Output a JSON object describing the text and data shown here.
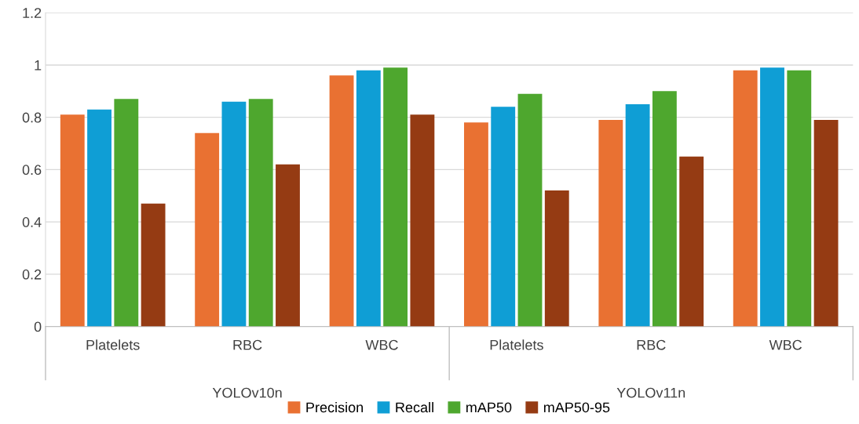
{
  "chart_data": {
    "type": "bar",
    "categories": [
      "Platelets",
      "RBC",
      "WBC",
      "Platelets",
      "RBC",
      "WBC"
    ],
    "annotations": [
      "YOLOv10n",
      "YOLOv11n"
    ],
    "series": [
      {
        "name": "Precision",
        "color": "#e97132",
        "values": [
          0.81,
          0.74,
          0.96,
          0.78,
          0.79,
          0.98
        ]
      },
      {
        "name": "Recall",
        "color": "#0f9ed5",
        "values": [
          0.83,
          0.86,
          0.98,
          0.84,
          0.85,
          0.99
        ]
      },
      {
        "name": "mAP50",
        "color": "#4ea72e",
        "values": [
          0.87,
          0.87,
          0.99,
          0.89,
          0.9,
          0.98
        ]
      },
      {
        "name": "mAP50-95",
        "color": "#953b13",
        "values": [
          0.47,
          0.62,
          0.81,
          0.52,
          0.65,
          0.79
        ]
      }
    ],
    "ylim": [
      0,
      1.2
    ],
    "yticks": [
      0,
      0.2,
      0.4,
      0.6,
      0.8,
      1,
      1.2
    ],
    "grid": "y",
    "legend": "bottom"
  }
}
